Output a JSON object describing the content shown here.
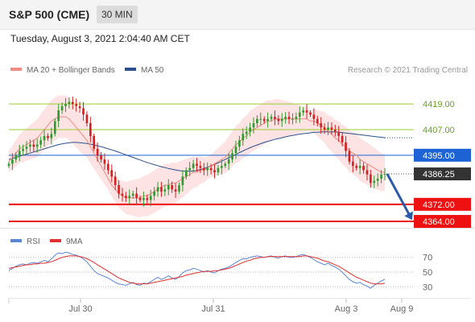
{
  "header": {
    "title": "S&P 500 (CME)",
    "timeframe": "30 MIN"
  },
  "datetime": "Tuesday, August 3, 2021 2:04:40 AM CET",
  "legend": {
    "ma20": "MA 20 + Bollinger Bands",
    "ma50": "MA 50",
    "credit": "Research © 2021 Trading Central"
  },
  "rsi_legend": {
    "rsi": "RSI",
    "ma": "9MA"
  },
  "colors": {
    "ma20": "#f28b82",
    "ma50": "#2d4f8b",
    "band": "#fde0e0",
    "up": "#2e9b2e",
    "down": "#d42020",
    "resistance": "#9acd32",
    "support": "#ee1111",
    "pivot": "#1e63d6",
    "arrow": "#2b5aa8",
    "rsi": "#5b86d6",
    "rsi_ma": "#e03030"
  },
  "chart_data": [
    {
      "type": "candlestick",
      "title": "S&P 500 (CME)",
      "timeframe": "30 MIN",
      "x_ticks": [
        "Jul 30",
        "Jul 31",
        "Aug 3",
        "Aug 9"
      ],
      "ylim": [
        4361,
        4430
      ],
      "levels": [
        {
          "label": "4419.00",
          "value": 4419.0,
          "kind": "resistance"
        },
        {
          "label": "4407.00",
          "value": 4407.0,
          "kind": "resistance"
        },
        {
          "label": "4395.00",
          "value": 4395.0,
          "kind": "pivot"
        },
        {
          "label": "4386.25",
          "value": 4386.25,
          "kind": "last"
        },
        {
          "label": "4372.00",
          "value": 4372.0,
          "kind": "support"
        },
        {
          "label": "4364.00",
          "value": 4364.0,
          "kind": "support"
        }
      ],
      "close": [
        4391,
        4393,
        4395,
        4397,
        4398,
        4399,
        4400,
        4399,
        4400,
        4402,
        4404,
        4403,
        4405,
        4411,
        4416,
        4418,
        4419,
        4420,
        4419,
        4418,
        4417,
        4414,
        4410,
        4404,
        4398,
        4395,
        4393,
        4391,
        4388,
        4385,
        4381,
        4377,
        4376,
        4375,
        4376,
        4377,
        4375,
        4374,
        4375,
        4374,
        4376,
        4378,
        4380,
        4378,
        4379,
        4381,
        4379,
        4378,
        4381,
        4385,
        4388,
        4389,
        4391,
        4390,
        4389,
        4388,
        4389,
        4388,
        4387,
        4389,
        4390,
        4391,
        4393,
        4396,
        4399,
        4402,
        4405,
        4406,
        4408,
        4410,
        4412,
        4412,
        4411,
        4412,
        4413,
        4412,
        4411,
        4412,
        4413,
        4412,
        4412,
        4413,
        4415,
        4416,
        4415,
        4414,
        4412,
        4410,
        4408,
        4407,
        4408,
        4407,
        4406,
        4404,
        4401,
        4397,
        4392,
        4390,
        4389,
        4390,
        4388,
        4386,
        4382,
        4383,
        4384,
        4386,
        4386.25
      ],
      "ma20": [
        4392,
        4394,
        4396,
        4398,
        4399,
        4400,
        4401,
        4402,
        4403,
        4405,
        4407,
        4409,
        4411,
        4412,
        4413,
        4413,
        4413,
        4412,
        4410,
        4408,
        4406,
        4404,
        4402,
        4399,
        4396,
        4393,
        4390,
        4387,
        4384,
        4381,
        4379,
        4377,
        4376,
        4375,
        4375,
        4375,
        4375,
        4375,
        4376,
        4376,
        4377,
        4378,
        4379,
        4380,
        4381,
        4381,
        4382,
        4382,
        4383,
        4384,
        4385,
        4386,
        4387,
        4387,
        4388,
        4388,
        4389,
        4390,
        4391,
        4392,
        4393,
        4394,
        4396,
        4398,
        4400,
        4401,
        4403,
        4404,
        4406,
        4407,
        4408,
        4409,
        4410,
        4411,
        4411,
        4412,
        4412,
        4412,
        4412,
        4412,
        4412,
        4412,
        4412,
        4412,
        4412,
        4411,
        4411,
        4410,
        4409,
        4408,
        4406,
        4405,
        4403,
        4402,
        4400,
        4399,
        4397,
        4396,
        4395,
        4393,
        4392,
        4391,
        4390,
        4389,
        4388,
        4387,
        4387
      ],
      "ma50": [
        4393,
        4393.5,
        4394,
        4394.5,
        4395,
        4395.5,
        4396,
        4396.5,
        4397,
        4397.5,
        4398,
        4398.5,
        4399,
        4399.5,
        4400,
        4400.3,
        4400.6,
        4400.8,
        4401,
        4401,
        4400.9,
        4400.7,
        4400.5,
        4400.2,
        4399.8,
        4399.4,
        4399,
        4398.5,
        4398,
        4397.5,
        4397,
        4396.4,
        4395.8,
        4395.2,
        4394.6,
        4394,
        4393.4,
        4392.8,
        4392.2,
        4391.6,
        4391.1,
        4390.6,
        4390.1,
        4389.6,
        4389.2,
        4388.8,
        4388.4,
        4388.1,
        4387.8,
        4387.6,
        4387.5,
        4387.5,
        4387.6,
        4387.9,
        4388.3,
        4388.8,
        4389.4,
        4390,
        4390.7,
        4391.4,
        4392.2,
        4393,
        4393.8,
        4394.6,
        4395.4,
        4396.2,
        4397,
        4397.8,
        4398.5,
        4399.2,
        4399.8,
        4400.4,
        4401,
        4401.5,
        4402,
        4402.4,
        4402.8,
        4403.2,
        4403.6,
        4404,
        4404.3,
        4404.6,
        4404.9,
        4405.1,
        4405.3,
        4405.5,
        4405.7,
        4405.8,
        4405.9,
        4406,
        4406,
        4406,
        4405.9,
        4405.8,
        4405.6,
        4405.4,
        4405.2,
        4405,
        4404.8,
        4404.6,
        4404.4,
        4404.2,
        4404,
        4403.8,
        4403.6,
        4403.4,
        4403.2
      ],
      "rsi": {
        "ticks": [
          70,
          50,
          30
        ],
        "ylim": [
          15,
          85
        ],
        "values": [
          52,
          55,
          58,
          60,
          61,
          60,
          62,
          63,
          62,
          64,
          66,
          64,
          68,
          73,
          76,
          75,
          77,
          76,
          74,
          73,
          71,
          68,
          64,
          58,
          52,
          48,
          46,
          44,
          42,
          39,
          36,
          34,
          33,
          32,
          34,
          36,
          33,
          32,
          35,
          34,
          37,
          40,
          43,
          40,
          42,
          45,
          42,
          40,
          44,
          49,
          52,
          53,
          55,
          54,
          52,
          50,
          52,
          50,
          49,
          52,
          54,
          55,
          57,
          60,
          63,
          66,
          68,
          68,
          70,
          71,
          72,
          71,
          70,
          71,
          72,
          70,
          69,
          71,
          72,
          70,
          70,
          71,
          73,
          74,
          72,
          70,
          67,
          64,
          62,
          60,
          62,
          59,
          57,
          54,
          50,
          45,
          40,
          37,
          35,
          36,
          33,
          31,
          28,
          32,
          35,
          38,
          40
        ],
        "ma9": [
          55,
          56,
          57,
          58,
          59,
          60,
          60,
          61,
          61,
          62,
          62,
          63,
          64,
          66,
          68,
          70,
          71,
          72,
          72,
          72,
          71,
          70,
          68,
          66,
          63,
          60,
          57,
          54,
          51,
          48,
          45,
          42,
          40,
          38,
          36,
          35,
          34,
          34,
          34,
          34,
          35,
          36,
          37,
          38,
          39,
          40,
          41,
          42,
          43,
          44,
          46,
          47,
          48,
          49,
          50,
          51,
          51,
          51,
          52,
          52,
          53,
          54,
          55,
          57,
          59,
          61,
          63,
          65,
          66,
          68,
          69,
          70,
          70,
          71,
          71,
          71,
          71,
          71,
          71,
          71,
          71,
          71,
          71,
          72,
          72,
          71,
          70,
          69,
          67,
          65,
          64,
          62,
          60,
          58,
          55,
          52,
          49,
          46,
          43,
          41,
          39,
          37,
          35,
          34,
          34,
          34,
          35
        ]
      }
    }
  ]
}
